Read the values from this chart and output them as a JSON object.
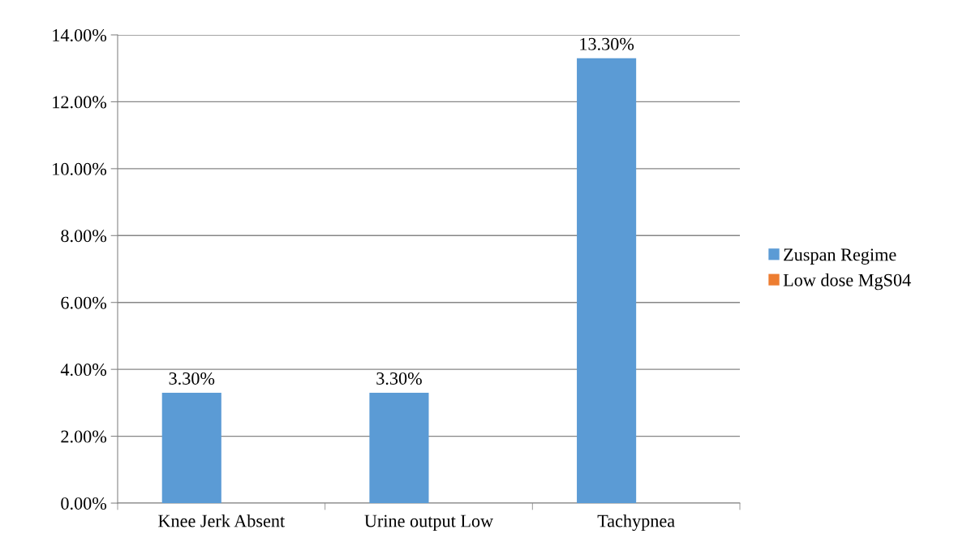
{
  "chart_data": {
    "type": "bar",
    "categories": [
      "Knee Jerk Absent",
      "Urine output Low",
      "Tachypnea"
    ],
    "series": [
      {
        "name": "Zuspan Regime",
        "color": "#5b9bd5",
        "values": [
          3.3,
          3.3,
          13.3
        ],
        "value_labels": [
          "3.30%",
          "3.30%",
          "13.30%"
        ]
      },
      {
        "name": "Low dose MgS04",
        "color": "#ed7d31",
        "values": [
          0,
          0,
          0
        ],
        "value_labels": [
          null,
          null,
          null
        ]
      }
    ],
    "ylim": [
      0,
      14
    ],
    "yticks": [
      {
        "value": 0,
        "label": "0.00%"
      },
      {
        "value": 2,
        "label": "2.00%"
      },
      {
        "value": 4,
        "label": "4.00%"
      },
      {
        "value": 6,
        "label": "6.00%"
      },
      {
        "value": 8,
        "label": "8.00%"
      },
      {
        "value": 10,
        "label": "10.00%"
      },
      {
        "value": 12,
        "label": "12.00%"
      },
      {
        "value": 14,
        "label": "14.00%"
      }
    ],
    "grid": "y",
    "legend": "right"
  }
}
